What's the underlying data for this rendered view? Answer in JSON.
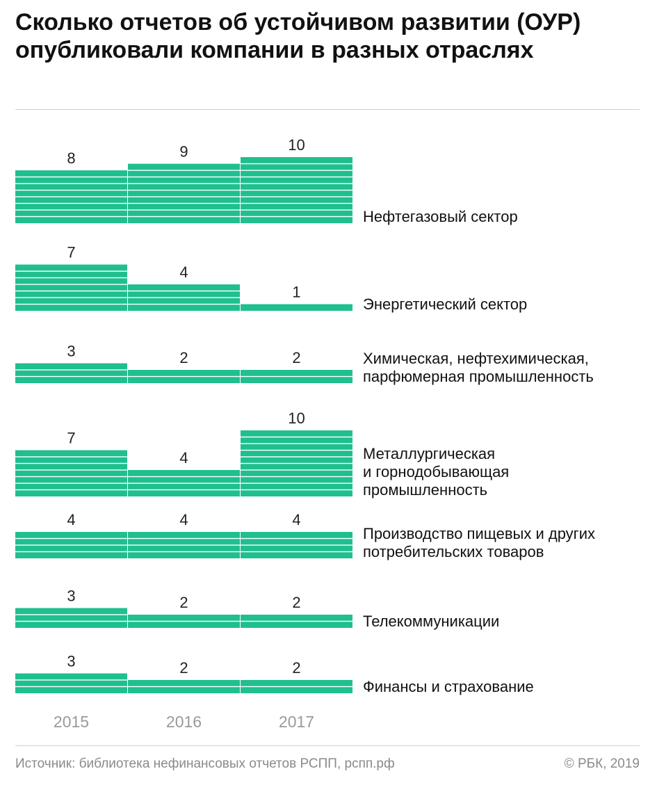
{
  "title": "Сколько отчетов об устойчивом развитии (ОУР) опубликовали компании в разных отраслях",
  "chart_data": {
    "type": "bar",
    "title": "Сколько отчетов об устойчивом развитии (ОУР) опубликовали компании в разных отраслях",
    "years": [
      "2015",
      "2016",
      "2017"
    ],
    "groups": [
      {
        "label_lines": [
          "Нефтегазовый сектор"
        ],
        "values": [
          8,
          9,
          10
        ]
      },
      {
        "label_lines": [
          "Энергетический сектор"
        ],
        "values": [
          7,
          4,
          1
        ]
      },
      {
        "label_lines": [
          "Химическая, нефтехимическая,",
          "парфюмерная промышленность"
        ],
        "values": [
          3,
          2,
          2
        ]
      },
      {
        "label_lines": [
          "Металлургическая",
          "и горнодобывающая",
          "промышленность"
        ],
        "values": [
          7,
          4,
          10
        ]
      },
      {
        "label_lines": [
          "Производство пищевых и других",
          "потребительских товаров"
        ],
        "values": [
          4,
          4,
          4
        ]
      },
      {
        "label_lines": [
          "Телекоммуникации"
        ],
        "values": [
          3,
          2,
          2
        ]
      },
      {
        "label_lines": [
          "Финансы и страхование"
        ],
        "values": [
          3,
          2,
          2
        ]
      }
    ],
    "bar_color": "#1fbf8f",
    "year_label_color": "#9a9a9a",
    "legend": "none",
    "grid": false
  },
  "footer": {
    "source": "Источник: библиотека нефинансовых отчетов РСПП, рспп.рф",
    "copyright": "© РБК, 2019"
  }
}
